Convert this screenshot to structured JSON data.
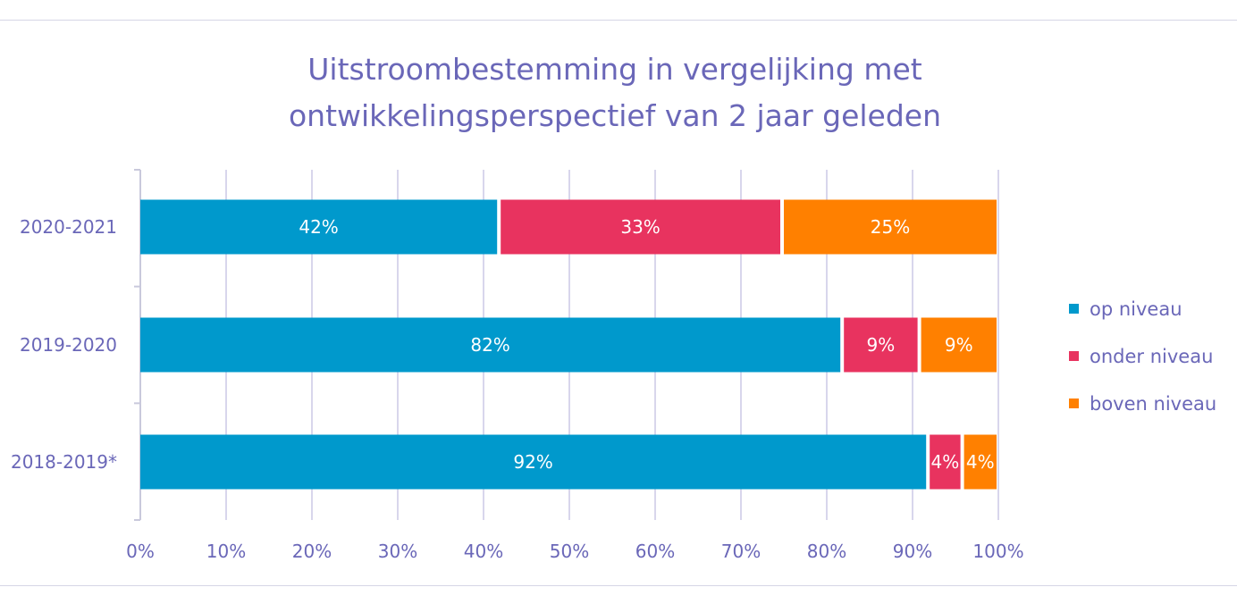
{
  "chart_data": {
    "type": "bar",
    "orientation": "horizontal",
    "stacked": true,
    "title": [
      "Uitstroombestemming in vergelijking met",
      "ontwikkelingsperspectief van 2 jaar geleden"
    ],
    "categories": [
      "2020-2021",
      "2019-2020",
      "2018-2019*"
    ],
    "series": [
      {
        "name": "op niveau",
        "color": "#0099cc",
        "values": [
          42,
          82,
          92
        ],
        "labels": [
          "42%",
          "82%",
          "92%"
        ]
      },
      {
        "name": "onder niveau",
        "color": "#e8335f",
        "values": [
          33,
          9,
          4
        ],
        "labels": [
          "33%",
          "9%",
          "4%"
        ]
      },
      {
        "name": "boven niveau",
        "color": "#ff8000",
        "values": [
          25,
          9,
          4
        ],
        "labels": [
          "25%",
          "9%",
          "4%"
        ]
      }
    ],
    "xlim": [
      0,
      100
    ],
    "xticks": [
      "0%",
      "10%",
      "20%",
      "30%",
      "40%",
      "50%",
      "60%",
      "70%",
      "80%",
      "90%",
      "100%"
    ],
    "grid": true,
    "legend_position": "right"
  },
  "colors": {
    "text": "#6a67b8",
    "grid": "#d8d6ec",
    "axis": "#c9c9dc"
  }
}
